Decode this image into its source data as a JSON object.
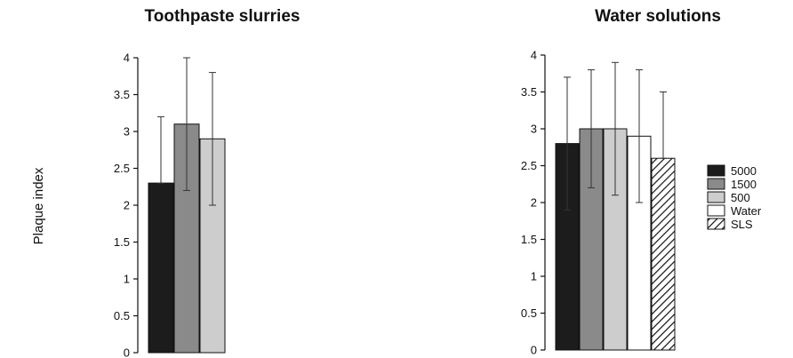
{
  "ylabel": "Plaque index",
  "colors": {
    "5000": "#1c1c1c",
    "1500": "#8a8a8a",
    "500": "#cdcdcd",
    "Water": "#ffffff",
    "SLS": "hatch"
  },
  "legend": {
    "placement": "right",
    "items": [
      "5000",
      "1500",
      "500",
      "Water",
      "SLS"
    ]
  },
  "chart_data": [
    {
      "type": "bar",
      "title": "Toothpaste slurries",
      "ylabel": "Plaque index",
      "ylim": [
        0,
        4
      ],
      "yticks": [
        "0",
        "0.5",
        "1",
        "1.5",
        "2",
        "2.5",
        "3",
        "3.5",
        "4"
      ],
      "grid": false,
      "categories": [
        "5000",
        "1500",
        "500"
      ],
      "values": [
        2.3,
        3.1,
        2.9
      ],
      "error_upper": [
        3.2,
        4.0,
        3.8
      ],
      "error_lower": [
        2.3,
        2.2,
        2.0
      ]
    },
    {
      "type": "bar",
      "title": "Water solutions",
      "ylim": [
        0,
        4
      ],
      "yticks": [
        "0",
        "0.5",
        "1",
        "1.5",
        "2",
        "2.5",
        "3",
        "3.5",
        "4"
      ],
      "grid": false,
      "categories": [
        "5000",
        "1500",
        "500",
        "Water",
        "SLS"
      ],
      "values": [
        2.8,
        3.0,
        3.0,
        2.9,
        2.6
      ],
      "error_upper": [
        3.7,
        3.8,
        3.9,
        3.8,
        3.5
      ],
      "error_lower": [
        1.9,
        2.2,
        2.1,
        2.0,
        2.6
      ]
    }
  ]
}
